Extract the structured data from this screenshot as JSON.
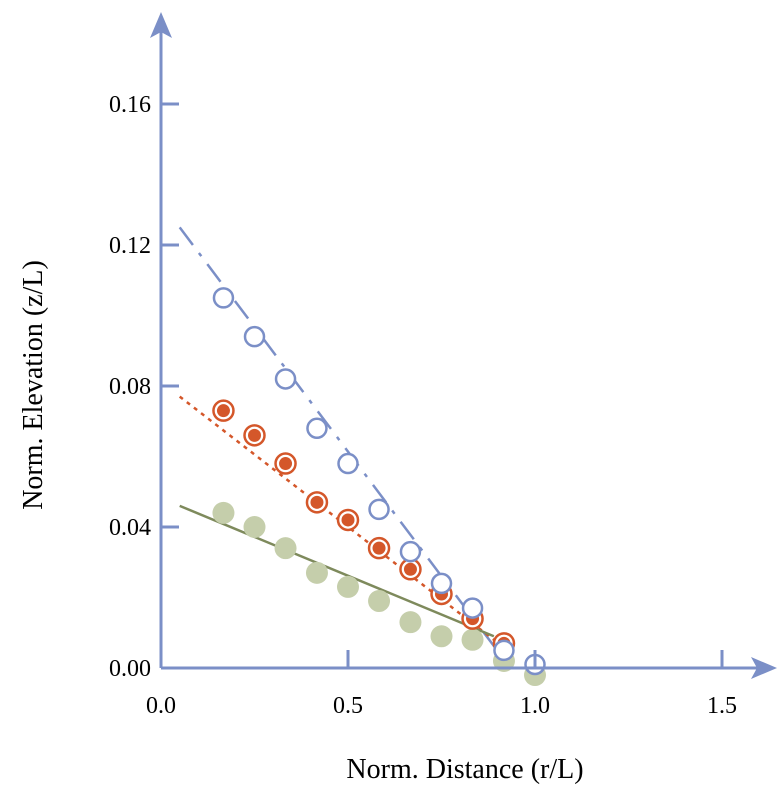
{
  "chart_data": {
    "type": "scatter",
    "xlabel": "Norm. Distance (r/L)",
    "ylabel": "Norm. Elevation (z/L)",
    "xlim": [
      0,
      1.6
    ],
    "ylim": [
      0,
      0.18
    ],
    "x_ticks": [
      {
        "value": 0.0,
        "label": "0.0"
      },
      {
        "value": 0.5,
        "label": "0.5"
      },
      {
        "value": 1.0,
        "label": "1.0"
      },
      {
        "value": 1.5,
        "label": "1.5"
      }
    ],
    "y_ticks": [
      {
        "value": 0.0,
        "label": "0.00"
      },
      {
        "value": 0.04,
        "label": "0.04"
      },
      {
        "value": 0.08,
        "label": "0.08"
      },
      {
        "value": 0.12,
        "label": "0.12"
      },
      {
        "value": 0.16,
        "label": "0.16"
      }
    ],
    "grid": false,
    "legend": "none",
    "axis_color": "#7b8fc7",
    "series": [
      {
        "marker": "open-circle",
        "color": "#7b8fc7",
        "points": [
          {
            "x": 0.167,
            "y": 0.105
          },
          {
            "x": 0.25,
            "y": 0.094
          },
          {
            "x": 0.333,
            "y": 0.082
          },
          {
            "x": 0.417,
            "y": 0.068
          },
          {
            "x": 0.5,
            "y": 0.058
          },
          {
            "x": 0.583,
            "y": 0.045
          },
          {
            "x": 0.667,
            "y": 0.033
          },
          {
            "x": 0.75,
            "y": 0.024
          },
          {
            "x": 0.833,
            "y": 0.017
          },
          {
            "x": 0.917,
            "y": 0.005
          },
          {
            "x": 1.0,
            "y": 0.001
          }
        ],
        "fit_line": {
          "style": "dashed",
          "from": [
            0.05,
            0.125
          ],
          "to": [
            0.92,
            0.002
          ]
        }
      },
      {
        "marker": "ringed-dot",
        "color": "#d4572a",
        "points": [
          {
            "x": 0.167,
            "y": 0.073
          },
          {
            "x": 0.25,
            "y": 0.066
          },
          {
            "x": 0.333,
            "y": 0.058
          },
          {
            "x": 0.417,
            "y": 0.047
          },
          {
            "x": 0.5,
            "y": 0.042
          },
          {
            "x": 0.583,
            "y": 0.034
          },
          {
            "x": 0.667,
            "y": 0.028
          },
          {
            "x": 0.75,
            "y": 0.021
          },
          {
            "x": 0.833,
            "y": 0.014
          },
          {
            "x": 0.917,
            "y": 0.007
          }
        ],
        "fit_line": {
          "style": "dotted",
          "from": [
            0.05,
            0.077
          ],
          "to": [
            0.89,
            0.008
          ]
        }
      },
      {
        "marker": "filled-circle",
        "color": "#c5ceab",
        "line_color": "#7e8a5c",
        "points": [
          {
            "x": 0.167,
            "y": 0.044
          },
          {
            "x": 0.25,
            "y": 0.04
          },
          {
            "x": 0.333,
            "y": 0.034
          },
          {
            "x": 0.417,
            "y": 0.027
          },
          {
            "x": 0.5,
            "y": 0.023
          },
          {
            "x": 0.583,
            "y": 0.019
          },
          {
            "x": 0.667,
            "y": 0.013
          },
          {
            "x": 0.75,
            "y": 0.009
          },
          {
            "x": 0.833,
            "y": 0.008
          },
          {
            "x": 0.917,
            "y": 0.002
          },
          {
            "x": 1.0,
            "y": -0.002
          }
        ],
        "fit_line": {
          "style": "solid",
          "from": [
            0.05,
            0.046
          ],
          "to": [
            0.89,
            0.009
          ]
        }
      }
    ]
  }
}
